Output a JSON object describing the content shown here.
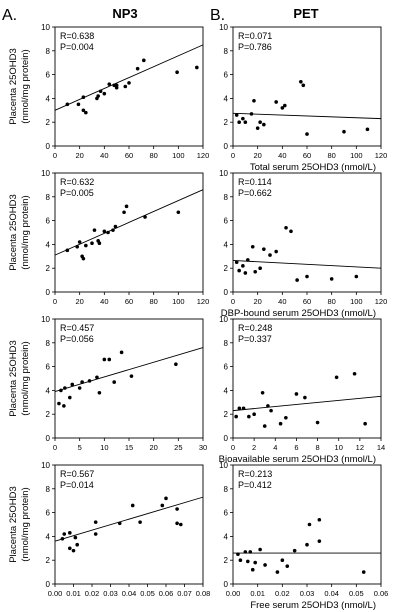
{
  "figure": {
    "panel_labels": [
      "A.",
      "B."
    ],
    "column_titles": [
      "NP3",
      "PET"
    ],
    "ylabel_line1": "Placenta 25OHD3",
    "ylabel_line2": "(nmol/mg protein)"
  },
  "chart_data": [
    {
      "type": "scatter",
      "group": "NP3",
      "row": 0,
      "xlabel": "Total serum 25OHD3 (nmol/L)",
      "xlim": [
        0,
        120
      ],
      "xticks": [
        0,
        20,
        40,
        60,
        80,
        100,
        120
      ],
      "xtick_labels": [
        "0",
        "20",
        "40",
        "60",
        "80",
        "100",
        "120"
      ],
      "ylim": [
        0,
        10
      ],
      "yticks": [
        0,
        2,
        4,
        6,
        8,
        10
      ],
      "ytick_labels": [
        "0",
        "2",
        "4",
        "6",
        "8",
        "10"
      ],
      "stats": [
        "R=0.638",
        "P=0.004"
      ],
      "points": [
        [
          10,
          3.5
        ],
        [
          19,
          3.5
        ],
        [
          23,
          3.0
        ],
        [
          25,
          2.8
        ],
        [
          23,
          4.1
        ],
        [
          34,
          4.0
        ],
        [
          35,
          4.2
        ],
        [
          37,
          4.6
        ],
        [
          40,
          4.4
        ],
        [
          44,
          5.2
        ],
        [
          48,
          5.1
        ],
        [
          50,
          4.9
        ],
        [
          50,
          5.1
        ],
        [
          57,
          5.0
        ],
        [
          60,
          5.3
        ],
        [
          67,
          6.5
        ],
        [
          72,
          7.2
        ],
        [
          99,
          6.2
        ],
        [
          115,
          6.6
        ]
      ],
      "fit": [
        [
          0,
          3.0
        ],
        [
          120,
          8.5
        ]
      ]
    },
    {
      "type": "scatter",
      "group": "PET",
      "row": 0,
      "xlabel": "Total serum 25OHD3 (nmol/L)",
      "xlim": [
        0,
        120
      ],
      "xticks": [
        0,
        20,
        40,
        60,
        80,
        100,
        120
      ],
      "xtick_labels": [
        "0",
        "20",
        "40",
        "60",
        "80",
        "100",
        "120"
      ],
      "ylim": [
        0,
        10
      ],
      "yticks": [
        0,
        2,
        4,
        6,
        8,
        10
      ],
      "ytick_labels": [
        "0",
        "2",
        "4",
        "6",
        "8",
        "10"
      ],
      "stats": [
        "R=0.071",
        "P=0.786"
      ],
      "points": [
        [
          3,
          2.6
        ],
        [
          5,
          2.0
        ],
        [
          8,
          2.3
        ],
        [
          10,
          2.0
        ],
        [
          15,
          2.7
        ],
        [
          17,
          3.8
        ],
        [
          20,
          1.5
        ],
        [
          22,
          2.0
        ],
        [
          25,
          1.8
        ],
        [
          35,
          3.7
        ],
        [
          40,
          3.2
        ],
        [
          42,
          3.4
        ],
        [
          55,
          5.4
        ],
        [
          57,
          5.1
        ],
        [
          60,
          1.0
        ],
        [
          90,
          1.2
        ],
        [
          109,
          1.4
        ]
      ],
      "fit": [
        [
          0,
          2.75
        ],
        [
          120,
          2.3
        ]
      ]
    },
    {
      "type": "scatter",
      "group": "NP3",
      "row": 1,
      "xlabel": "DBP-bound serum 25OHD3 (nmol/L)",
      "xlim": [
        0,
        120
      ],
      "xticks": [
        0,
        20,
        40,
        60,
        80,
        100,
        120
      ],
      "xtick_labels": [
        "0",
        "20",
        "40",
        "60",
        "80",
        "100",
        "120"
      ],
      "ylim": [
        0,
        10
      ],
      "yticks": [
        0,
        2,
        4,
        6,
        8,
        10
      ],
      "ytick_labels": [
        "0",
        "2",
        "4",
        "6",
        "8",
        "10"
      ],
      "stats": [
        "R=0.632",
        "P=0.005"
      ],
      "points": [
        [
          10,
          3.5
        ],
        [
          18,
          3.8
        ],
        [
          20,
          4.2
        ],
        [
          22,
          3.0
        ],
        [
          23,
          2.8
        ],
        [
          25,
          3.9
        ],
        [
          30,
          4.1
        ],
        [
          32,
          5.2
        ],
        [
          35,
          4.3
        ],
        [
          36,
          4.1
        ],
        [
          40,
          5.1
        ],
        [
          43,
          5.0
        ],
        [
          47,
          5.2
        ],
        [
          49,
          5.5
        ],
        [
          56,
          6.7
        ],
        [
          58,
          7.2
        ],
        [
          73,
          6.3
        ],
        [
          100,
          6.7
        ]
      ],
      "fit": [
        [
          0,
          3.1
        ],
        [
          120,
          8.6
        ]
      ]
    },
    {
      "type": "scatter",
      "group": "PET",
      "row": 1,
      "xlabel": "DBP-bound serum 25OHD3 (nmol/L)",
      "xlim": [
        0,
        120
      ],
      "xticks": [
        0,
        20,
        40,
        60,
        80,
        100,
        120
      ],
      "xtick_labels": [
        "0",
        "20",
        "40",
        "60",
        "80",
        "100",
        "120"
      ],
      "ylim": [
        0,
        10
      ],
      "yticks": [
        0,
        2,
        4,
        6,
        8,
        10
      ],
      "ytick_labels": [
        "0",
        "2",
        "4",
        "6",
        "8",
        "10"
      ],
      "stats": [
        "R=0.114",
        "P=0.662"
      ],
      "points": [
        [
          3,
          2.5
        ],
        [
          5,
          1.8
        ],
        [
          8,
          2.2
        ],
        [
          10,
          1.6
        ],
        [
          12,
          2.7
        ],
        [
          16,
          3.8
        ],
        [
          18,
          1.7
        ],
        [
          22,
          2.0
        ],
        [
          25,
          3.6
        ],
        [
          30,
          3.1
        ],
        [
          35,
          3.4
        ],
        [
          43,
          5.4
        ],
        [
          47,
          5.1
        ],
        [
          52,
          1.0
        ],
        [
          60,
          1.3
        ],
        [
          80,
          1.1
        ],
        [
          100,
          1.3
        ]
      ],
      "fit": [
        [
          0,
          2.65
        ],
        [
          120,
          2.0
        ]
      ]
    },
    {
      "type": "scatter",
      "group": "NP3",
      "row": 2,
      "xlabel": "Bioavailable serum 25OHD3 (nmol/L)",
      "xlim": [
        0,
        30
      ],
      "xticks": [
        0,
        5,
        10,
        15,
        20,
        25,
        30
      ],
      "xtick_labels": [
        "0",
        "5",
        "10",
        "15",
        "20",
        "25",
        "30"
      ],
      "ylim": [
        0,
        10
      ],
      "yticks": [
        0,
        2,
        4,
        6,
        8,
        10
      ],
      "ytick_labels": [
        "0",
        "2",
        "4",
        "6",
        "8",
        "10"
      ],
      "stats": [
        "R=0.457",
        "P=0.056"
      ],
      "points": [
        [
          0.8,
          2.9
        ],
        [
          1.2,
          4.0
        ],
        [
          1.8,
          2.7
        ],
        [
          2,
          4.2
        ],
        [
          3,
          3.4
        ],
        [
          3.5,
          4.5
        ],
        [
          5,
          4.2
        ],
        [
          5.5,
          4.7
        ],
        [
          7,
          4.8
        ],
        [
          8.5,
          5.1
        ],
        [
          9,
          3.8
        ],
        [
          10,
          6.6
        ],
        [
          11,
          6.6
        ],
        [
          12,
          4.7
        ],
        [
          13.5,
          7.2
        ],
        [
          15.5,
          5.2
        ],
        [
          24.5,
          6.2
        ]
      ],
      "fit": [
        [
          0,
          3.9
        ],
        [
          30,
          7.6
        ]
      ]
    },
    {
      "type": "scatter",
      "group": "PET",
      "row": 2,
      "xlabel": "Bioavailable serum 25OHD3 (nmol/L)",
      "xlim": [
        0,
        14
      ],
      "xticks": [
        0,
        2,
        4,
        6,
        8,
        10,
        12,
        14
      ],
      "xtick_labels": [
        "0",
        "2",
        "4",
        "6",
        "8",
        "10",
        "12",
        "14"
      ],
      "ylim": [
        0,
        10
      ],
      "yticks": [
        0,
        2,
        4,
        6,
        8,
        10
      ],
      "ytick_labels": [
        "0",
        "2",
        "4",
        "6",
        "8",
        "10"
      ],
      "stats": [
        "R=0.248",
        "P=0.337"
      ],
      "points": [
        [
          0.3,
          1.8
        ],
        [
          0.6,
          2.5
        ],
        [
          1,
          2.5
        ],
        [
          1.5,
          1.8
        ],
        [
          2,
          2.0
        ],
        [
          2.8,
          3.8
        ],
        [
          3,
          1.0
        ],
        [
          3.3,
          2.7
        ],
        [
          3.6,
          2.3
        ],
        [
          4.5,
          1.2
        ],
        [
          5,
          1.7
        ],
        [
          6,
          3.7
        ],
        [
          6.8,
          3.4
        ],
        [
          8,
          1.3
        ],
        [
          9.8,
          5.1
        ],
        [
          11.5,
          5.4
        ],
        [
          12.5,
          1.2
        ]
      ],
      "fit": [
        [
          0,
          2.3
        ],
        [
          14,
          3.5
        ]
      ]
    },
    {
      "type": "scatter",
      "group": "NP3",
      "row": 3,
      "xlabel": "Free serum 25OHD3 (nmol/L)",
      "xlim": [
        0,
        0.08
      ],
      "xticks": [
        0,
        0.01,
        0.02,
        0.03,
        0.04,
        0.05,
        0.06,
        0.07,
        0.08
      ],
      "xtick_labels": [
        "0.00",
        "0.01",
        "0.02",
        "0.03",
        "0.04",
        "0.05",
        "0.06",
        "0.07",
        "0.08"
      ],
      "ylim": [
        0,
        10
      ],
      "yticks": [
        0,
        2,
        4,
        6,
        8,
        10
      ],
      "ytick_labels": [
        "0",
        "2",
        "4",
        "6",
        "8",
        "10"
      ],
      "stats": [
        "R=0.567",
        "P=0.014"
      ],
      "points": [
        [
          0.004,
          3.8
        ],
        [
          0.005,
          4.2
        ],
        [
          0.008,
          4.3
        ],
        [
          0.008,
          3.0
        ],
        [
          0.01,
          2.8
        ],
        [
          0.011,
          3.9
        ],
        [
          0.012,
          3.3
        ],
        [
          0.022,
          5.2
        ],
        [
          0.022,
          4.2
        ],
        [
          0.035,
          5.1
        ],
        [
          0.042,
          6.6
        ],
        [
          0.046,
          5.2
        ],
        [
          0.058,
          6.6
        ],
        [
          0.06,
          7.2
        ],
        [
          0.066,
          6.3
        ],
        [
          0.066,
          5.1
        ],
        [
          0.068,
          5.0
        ]
      ],
      "fit": [
        [
          0,
          3.6
        ],
        [
          0.08,
          7.3
        ]
      ]
    },
    {
      "type": "scatter",
      "group": "PET",
      "row": 3,
      "xlabel": "Free serum 25OHD3 (nmol/L)",
      "xlim": [
        0,
        0.06
      ],
      "xticks": [
        0,
        0.01,
        0.02,
        0.03,
        0.04,
        0.05,
        0.06
      ],
      "xtick_labels": [
        "0.00",
        "0.01",
        "0.02",
        "0.03",
        "0.04",
        "0.05",
        "0.06"
      ],
      "ylim": [
        0,
        10
      ],
      "yticks": [
        0,
        2,
        4,
        6,
        8,
        10
      ],
      "ytick_labels": [
        "0",
        "2",
        "4",
        "6",
        "8",
        "10"
      ],
      "stats": [
        "R=0.213",
        "P=0.412"
      ],
      "points": [
        [
          0.002,
          2.5
        ],
        [
          0.003,
          2.0
        ],
        [
          0.005,
          2.7
        ],
        [
          0.006,
          1.9
        ],
        [
          0.007,
          2.7
        ],
        [
          0.008,
          1.2
        ],
        [
          0.009,
          1.8
        ],
        [
          0.011,
          2.9
        ],
        [
          0.013,
          1.6
        ],
        [
          0.018,
          1.0
        ],
        [
          0.02,
          2.0
        ],
        [
          0.022,
          1.5
        ],
        [
          0.025,
          2.8
        ],
        [
          0.03,
          3.3
        ],
        [
          0.031,
          5.0
        ],
        [
          0.035,
          5.4
        ],
        [
          0.035,
          3.6
        ],
        [
          0.053,
          1.0
        ]
      ],
      "fit": [
        [
          0,
          2.6
        ],
        [
          0.06,
          2.6
        ]
      ]
    }
  ]
}
